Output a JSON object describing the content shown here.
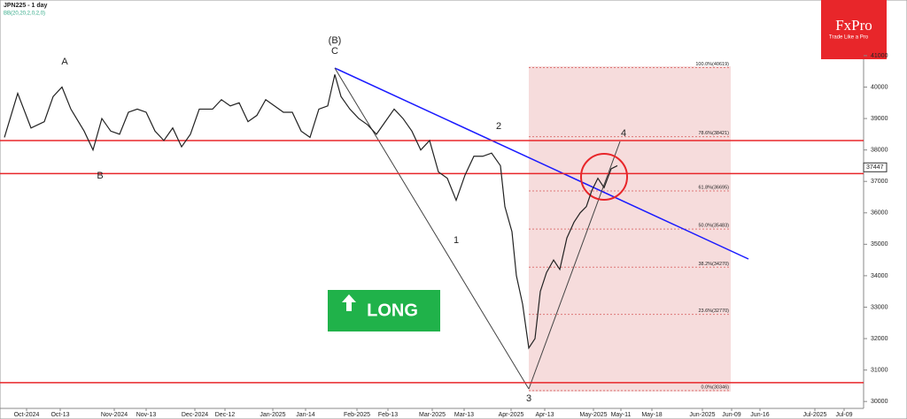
{
  "chart_data": {
    "type": "line",
    "title": "JPN225 - 1 day",
    "subtitle": "BB(20,20,2,0,2,0)",
    "brand": "FxPro",
    "tagline": "Trade Like a Pro",
    "signal": "LONG",
    "series": [
      {
        "name": "JPN225",
        "color": "#222222",
        "x": [
          5,
          20,
          35,
          50,
          60,
          70,
          80,
          95,
          105,
          115,
          125,
          135,
          145,
          155,
          165,
          175,
          185,
          195,
          205,
          215,
          225,
          240,
          250,
          260,
          270,
          280,
          290,
          300,
          310,
          320,
          330,
          340,
          350,
          360,
          370,
          378,
          385,
          395,
          405,
          415,
          425,
          435,
          445,
          455,
          465,
          475,
          485,
          495,
          505,
          515,
          525,
          535,
          545,
          555,
          565,
          570,
          578,
          583,
          590,
          597,
          604,
          610,
          617,
          625,
          632,
          640,
          648,
          655,
          662,
          668,
          675,
          682,
          690,
          697
        ],
        "values": [
          38400,
          39800,
          38700,
          38900,
          39700,
          40000,
          39300,
          38600,
          38000,
          39000,
          38600,
          38500,
          39200,
          39300,
          39200,
          38600,
          38300,
          38700,
          38100,
          38500,
          39300,
          39300,
          39600,
          39400,
          39500,
          38900,
          39100,
          39600,
          39400,
          39200,
          39200,
          38600,
          38400,
          39300,
          39400,
          40400,
          39700,
          39300,
          39000,
          38800,
          38500,
          38900,
          39300,
          39000,
          38600,
          38000,
          38300,
          37300,
          37100,
          36400,
          37200,
          37800,
          37800,
          37900,
          37500,
          36200,
          35400,
          34000,
          33100,
          31700,
          32000,
          33500,
          34100,
          34500,
          34200,
          35200,
          35700,
          36000,
          36200,
          36700,
          37100,
          36800,
          37400,
          37500
        ]
      }
    ],
    "fib_levels": [
      {
        "value": 40619,
        "label": "100.0%(40619)"
      },
      {
        "value": 38421,
        "label": "78.6%(38421)"
      },
      {
        "value": 36695,
        "label": "61.8%(36695)"
      },
      {
        "value": 35483,
        "label": "50.0%(35483)"
      },
      {
        "value": 34270,
        "label": "38.2%(34270)"
      },
      {
        "value": 32770,
        "label": "23.6%(32770)"
      },
      {
        "value": 30346,
        "label": "0.0%(30346)"
      }
    ],
    "levels": [
      38300,
      37250,
      30600
    ],
    "last_price": 37447,
    "annotations": [
      "A",
      "B",
      "(B)",
      "C",
      "1",
      "2",
      "3",
      "4"
    ],
    "ylim": [
      29780,
      42770
    ],
    "yticks": [
      30000,
      31000,
      32000,
      33000,
      34000,
      35000,
      36000,
      37000,
      38000,
      39000,
      40000,
      41000
    ],
    "xlim": [
      0,
      975
    ],
    "xticks": [
      {
        "value": 30,
        "label": "Oct-2024"
      },
      {
        "value": 68,
        "label": "Oct-13"
      },
      {
        "value": 129,
        "label": "Nov-2024"
      },
      {
        "value": 165,
        "label": "Nov-13"
      },
      {
        "value": 220,
        "label": "Dec-2024"
      },
      {
        "value": 254,
        "label": "Dec-12"
      },
      {
        "value": 308,
        "label": "Jan-2025"
      },
      {
        "value": 345,
        "label": "Jan-14"
      },
      {
        "value": 403,
        "label": "Feb-2025"
      },
      {
        "value": 438,
        "label": "Feb-13"
      },
      {
        "value": 488,
        "label": "Mar-2025"
      },
      {
        "value": 524,
        "label": "Mar-13"
      },
      {
        "value": 577,
        "label": "Apr-2025"
      },
      {
        "value": 615,
        "label": "Apr-13"
      },
      {
        "value": 670,
        "label": "May-2025"
      },
      {
        "value": 701,
        "label": "May-11"
      },
      {
        "value": 736,
        "label": "May-18"
      },
      {
        "value": 793,
        "label": "Jun-2025"
      },
      {
        "value": 826,
        "label": "Jun-09"
      },
      {
        "value": 858,
        "label": "Jun-16"
      },
      {
        "value": 920,
        "label": "Jul-2025"
      },
      {
        "value": 953,
        "label": "Jul-09"
      }
    ]
  }
}
